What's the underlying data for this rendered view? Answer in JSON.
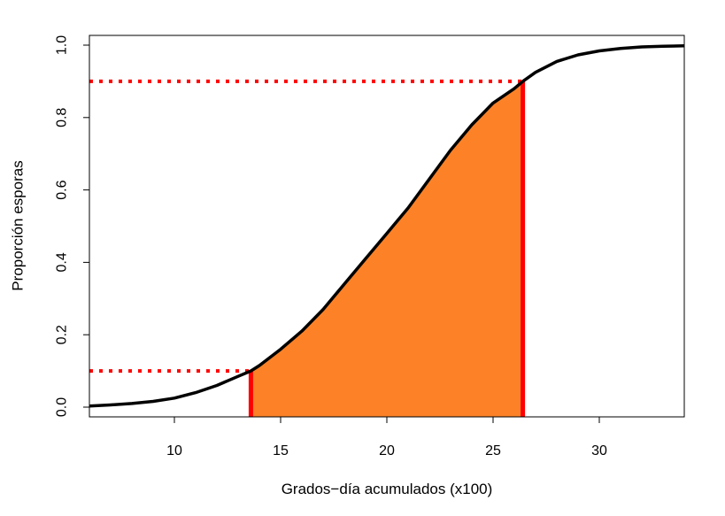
{
  "chart_data": {
    "type": "line",
    "title": "",
    "xlabel": "Grados−día acumulados (x100)",
    "ylabel": "Proporción esporas",
    "xlim": [
      6,
      34
    ],
    "ylim": [
      0,
      1.0
    ],
    "x_ticks": [
      10,
      15,
      20,
      25,
      30
    ],
    "y_ticks": [
      0.0,
      0.2,
      0.4,
      0.6,
      0.8,
      1.0
    ],
    "x_tick_labels": [
      "10",
      "15",
      "20",
      "25",
      "30"
    ],
    "y_tick_labels": [
      "0.0",
      "0.2",
      "0.4",
      "0.6",
      "0.8",
      "1.0"
    ],
    "grid": false,
    "series": [
      {
        "color": "#000000",
        "x": [
          6,
          7,
          8,
          9,
          10,
          11,
          12,
          13,
          13.6,
          14,
          15,
          16,
          17,
          18,
          19,
          20,
          21,
          22,
          23,
          24,
          25,
          26,
          26.4,
          27,
          28,
          29,
          30,
          31,
          32,
          33,
          34
        ],
        "y": [
          0.003,
          0.006,
          0.01,
          0.016,
          0.025,
          0.04,
          0.06,
          0.085,
          0.1,
          0.115,
          0.16,
          0.21,
          0.27,
          0.34,
          0.41,
          0.48,
          0.55,
          0.63,
          0.71,
          0.78,
          0.84,
          0.88,
          0.9,
          0.925,
          0.955,
          0.973,
          0.984,
          0.991,
          0.995,
          0.997,
          0.998
        ]
      }
    ],
    "shaded_region": {
      "x_from": 13.6,
      "x_to": 26.4,
      "color": "#fd8227"
    },
    "vertical_lines": [
      {
        "x": 13.6,
        "y": 0.1,
        "color": "#ff0000"
      },
      {
        "x": 26.4,
        "y": 0.9,
        "color": "#ff0000"
      }
    ],
    "horizontal_dotted_lines": [
      {
        "y": 0.1,
        "x_to": 13.6,
        "color": "#ff0000"
      },
      {
        "y": 0.9,
        "x_to": 26.4,
        "color": "#ff0000"
      }
    ]
  }
}
